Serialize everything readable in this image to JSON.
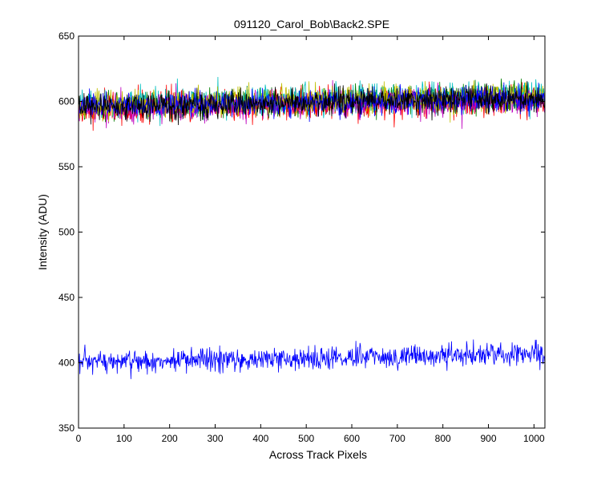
{
  "chart_data": {
    "type": "line",
    "title": "091120_Carol_Bob\\Back2.SPE",
    "xlabel": "Across Track Pixels",
    "ylabel": "Intensity (ADU)",
    "xlim": [
      0,
      1024
    ],
    "ylim": [
      350,
      650
    ],
    "x_ticks": [
      0,
      100,
      200,
      300,
      400,
      500,
      600,
      700,
      800,
      900,
      1000
    ],
    "y_ticks": [
      350,
      400,
      450,
      500,
      550,
      600,
      650
    ],
    "grid": false,
    "legend": "none",
    "x": {
      "start": 0,
      "end": 1024,
      "points": 1025
    },
    "series": [
      {
        "color": "#0000ff",
        "trend": [
          [
            0,
            400
          ],
          [
            1024,
            407
          ]
        ],
        "noise": 4.5
      },
      {
        "color": "#007f00",
        "trend": [
          [
            0,
            596
          ],
          [
            1024,
            604
          ]
        ],
        "noise": 5.5
      },
      {
        "color": "#ff0000",
        "trend": [
          [
            0,
            594
          ],
          [
            1024,
            601
          ]
        ],
        "noise": 5.5
      },
      {
        "color": "#00bfbf",
        "trend": [
          [
            0,
            598
          ],
          [
            1024,
            605
          ]
        ],
        "noise": 5.5
      },
      {
        "color": "#bf00bf",
        "trend": [
          [
            0,
            594
          ],
          [
            1024,
            601
          ]
        ],
        "noise": 5.0
      },
      {
        "color": "#bfbf00",
        "trend": [
          [
            0,
            597
          ],
          [
            1024,
            604
          ]
        ],
        "noise": 5.0
      },
      {
        "color": "#0000ff",
        "trend": [
          [
            0,
            596
          ],
          [
            1024,
            602
          ]
        ],
        "noise": 5.0
      },
      {
        "color": "#000000",
        "trend": [
          [
            0,
            596
          ],
          [
            1024,
            603
          ]
        ],
        "noise": 5.0
      }
    ]
  }
}
